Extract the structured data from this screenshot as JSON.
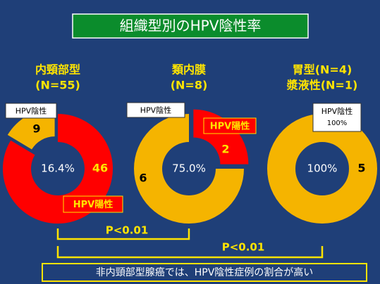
{
  "title": "組織型別のHPV陰性率",
  "chart_data": [
    {
      "type": "donut",
      "title": [
        "内頸部型",
        "(N=55)"
      ],
      "categories": [
        "HPV陽性",
        "HPV陰性"
      ],
      "values": [
        46,
        9
      ],
      "colors": [
        "#ff0000",
        "#f5b400"
      ],
      "explode": [
        false,
        true
      ],
      "center_label": "16.4%"
    },
    {
      "type": "donut",
      "title": [
        "類内膜",
        "(N=8)"
      ],
      "categories": [
        "HPV陽性",
        "HPV陰性"
      ],
      "values": [
        2,
        6
      ],
      "colors": [
        "#ff0000",
        "#f5b400"
      ],
      "explode": [
        true,
        false
      ],
      "center_label": "75.0%"
    },
    {
      "type": "donut",
      "title": [
        "胃型(N=4)",
        "漿液性(N=1)"
      ],
      "categories": [
        "HPV陰性"
      ],
      "values": [
        5
      ],
      "colors": [
        "#f5b400"
      ],
      "explode": [
        false
      ],
      "center_label": "100%",
      "callout_percent": "100%"
    }
  ],
  "comparisons": [
    {
      "label": "P<0.01"
    },
    {
      "label": "P<0.01"
    }
  ],
  "footer": "非内頸部型腺癌では、HPV陰性症例の割合が高い"
}
